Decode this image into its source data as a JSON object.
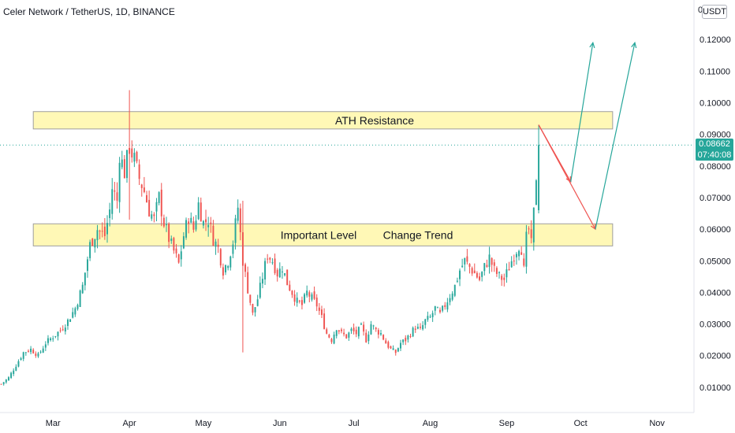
{
  "header": {
    "title": "Celer Network / TetherUS, 1D, BINANCE",
    "currency": "USDT",
    "scale_zero": "0"
  },
  "price_tag": {
    "price": "0.08662",
    "countdown": "07:40:08"
  },
  "chart_data": {
    "type": "candlestick",
    "title": "Celer Network / TetherUS, 1D, BINANCE",
    "ylim": [
      0.0,
      0.128
    ],
    "y_ticks": [
      "0.01000",
      "0.02000",
      "0.03000",
      "0.04000",
      "0.05000",
      "0.06000",
      "0.07000",
      "0.08000",
      "0.09000",
      "0.10000",
      "0.11000",
      "0.12000"
    ],
    "y_tick_values": [
      0.01,
      0.02,
      0.03,
      0.04,
      0.05,
      0.06,
      0.07,
      0.08,
      0.09,
      0.1,
      0.11,
      0.12
    ],
    "x_ticks": [
      {
        "label": "Mar",
        "day": 0
      },
      {
        "label": "Apr",
        "day": 31
      },
      {
        "label": "May",
        "day": 61
      },
      {
        "label": "Jun",
        "day": 92
      },
      {
        "label": "Jul",
        "day": 122
      },
      {
        "label": "Aug",
        "day": 153
      },
      {
        "label": "Sep",
        "day": 184
      },
      {
        "label": "Oct",
        "day": 214
      },
      {
        "label": "Nov",
        "day": 245
      }
    ],
    "x_domain": [
      -21.5,
      260
    ],
    "colors": {
      "up": "#26a69a",
      "down": "#ef5350",
      "zone_fill": "#fff59d",
      "zone_stroke": "#9e9e9e",
      "path_down": "#ef5350",
      "path_up": "#26a69a"
    },
    "close_trajectory": [
      [
        -21,
        0.011
      ],
      [
        -18,
        0.013
      ],
      [
        -15,
        0.017
      ],
      [
        -12,
        0.021
      ],
      [
        -9,
        0.022
      ],
      [
        -6,
        0.02
      ],
      [
        -3,
        0.024
      ],
      [
        0,
        0.026
      ],
      [
        3,
        0.028
      ],
      [
        6,
        0.031
      ],
      [
        9,
        0.035
      ],
      [
        12,
        0.042
      ],
      [
        15,
        0.055
      ],
      [
        18,
        0.06
      ],
      [
        21,
        0.058
      ],
      [
        23,
        0.066
      ],
      [
        24,
        0.073
      ],
      [
        26,
        0.069
      ],
      [
        27,
        0.084
      ],
      [
        29,
        0.078
      ],
      [
        31,
        0.086
      ],
      [
        33,
        0.082
      ],
      [
        35,
        0.076
      ],
      [
        37,
        0.072
      ],
      [
        39,
        0.066
      ],
      [
        41,
        0.063
      ],
      [
        43,
        0.07
      ],
      [
        45,
        0.062
      ],
      [
        47,
        0.057
      ],
      [
        49,
        0.053
      ],
      [
        51,
        0.049
      ],
      [
        53,
        0.058
      ],
      [
        55,
        0.064
      ],
      [
        57,
        0.06
      ],
      [
        59,
        0.068
      ],
      [
        61,
        0.062
      ],
      [
        63,
        0.063
      ],
      [
        65,
        0.057
      ],
      [
        67,
        0.054
      ],
      [
        69,
        0.047
      ],
      [
        71,
        0.05
      ],
      [
        73,
        0.056
      ],
      [
        75,
        0.067
      ],
      [
        77,
        0.05
      ],
      [
        79,
        0.041
      ],
      [
        81,
        0.033
      ],
      [
        83,
        0.038
      ],
      [
        85,
        0.045
      ],
      [
        87,
        0.052
      ],
      [
        89,
        0.05
      ],
      [
        91,
        0.046
      ],
      [
        93,
        0.048
      ],
      [
        95,
        0.043
      ],
      [
        97,
        0.04
      ],
      [
        99,
        0.037
      ],
      [
        101,
        0.036
      ],
      [
        103,
        0.04
      ],
      [
        105,
        0.038
      ],
      [
        107,
        0.036
      ],
      [
        109,
        0.032
      ],
      [
        111,
        0.027
      ],
      [
        113,
        0.025
      ],
      [
        115,
        0.029
      ],
      [
        117,
        0.027
      ],
      [
        119,
        0.026
      ],
      [
        121,
        0.028
      ],
      [
        123,
        0.027
      ],
      [
        125,
        0.029
      ],
      [
        127,
        0.025
      ],
      [
        129,
        0.03
      ],
      [
        131,
        0.028
      ],
      [
        133,
        0.027
      ],
      [
        135,
        0.024
      ],
      [
        137,
        0.022
      ],
      [
        139,
        0.021
      ],
      [
        141,
        0.024
      ],
      [
        143,
        0.025
      ],
      [
        145,
        0.027
      ],
      [
        147,
        0.029
      ],
      [
        149,
        0.028
      ],
      [
        151,
        0.031
      ],
      [
        153,
        0.032
      ],
      [
        155,
        0.035
      ],
      [
        157,
        0.033
      ],
      [
        159,
        0.036
      ],
      [
        161,
        0.039
      ],
      [
        163,
        0.042
      ],
      [
        165,
        0.047
      ],
      [
        167,
        0.05
      ],
      [
        169,
        0.048
      ],
      [
        171,
        0.046
      ],
      [
        173,
        0.044
      ],
      [
        175,
        0.048
      ],
      [
        177,
        0.051
      ],
      [
        179,
        0.047
      ],
      [
        181,
        0.045
      ],
      [
        183,
        0.044
      ],
      [
        185,
        0.048
      ],
      [
        187,
        0.052
      ],
      [
        189,
        0.055
      ],
      [
        190,
        0.054
      ],
      [
        191,
        0.047
      ],
      [
        192,
        0.057
      ],
      [
        193,
        0.06
      ],
      [
        194,
        0.055
      ],
      [
        195,
        0.065
      ],
      [
        196,
        0.077
      ],
      [
        197,
        0.0866
      ]
    ],
    "wick_extremes": [
      {
        "day": 31,
        "high": 0.104,
        "low": 0.063
      },
      {
        "day": 77,
        "high": 0.069,
        "low": 0.021
      },
      {
        "day": 139,
        "high": 0.022,
        "low": 0.02
      },
      {
        "day": 197,
        "high": 0.093,
        "low": 0.065
      }
    ],
    "zones": [
      {
        "label": "ATH Resistance",
        "low": 0.0917,
        "high": 0.0972,
        "day_start": -8,
        "day_end": 227
      },
      {
        "label": "Important Level",
        "label2": "Change Trend",
        "low": 0.0547,
        "high": 0.0617,
        "day_start": -8,
        "day_end": 227
      }
    ],
    "projection_paths": [
      {
        "points": [
          [
            197,
            0.093
          ],
          [
            210,
            0.075
          ],
          [
            219,
            0.119
          ]
        ],
        "colors": [
          "#ef5350",
          "#26a69a"
        ]
      },
      {
        "points": [
          [
            197,
            0.093
          ],
          [
            220,
            0.06
          ],
          [
            236,
            0.119
          ]
        ],
        "colors": [
          "#ef5350",
          "#26a69a"
        ]
      }
    ],
    "last_price": 0.08662
  }
}
